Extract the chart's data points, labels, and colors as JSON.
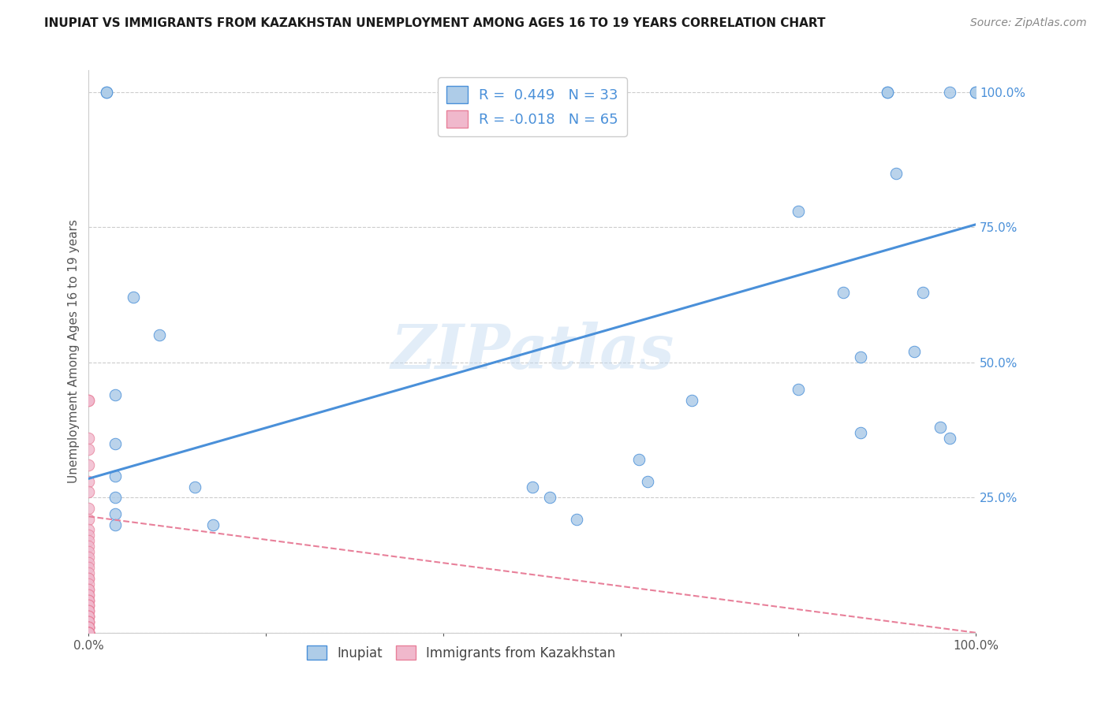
{
  "title": "INUPIAT VS IMMIGRANTS FROM KAZAKHSTAN UNEMPLOYMENT AMONG AGES 16 TO 19 YEARS CORRELATION CHART",
  "source": "Source: ZipAtlas.com",
  "ylabel": "Unemployment Among Ages 16 to 19 years",
  "legend_labels": [
    "Inupiat",
    "Immigrants from Kazakhstan"
  ],
  "inupiat_R": 0.449,
  "inupiat_N": 33,
  "kaz_R": -0.018,
  "kaz_N": 65,
  "inupiat_color": "#aecce8",
  "kaz_color": "#f0b8cc",
  "line_blue": "#4a90d9",
  "line_pink": "#e8809a",
  "watermark": "ZIPatlas",
  "inupiat_x": [
    0.02,
    0.02,
    0.05,
    0.08,
    0.03,
    0.03,
    0.03,
    0.03,
    0.03,
    0.03,
    0.12,
    0.14,
    0.5,
    0.52,
    0.55,
    0.62,
    0.63,
    0.68,
    0.8,
    0.8,
    0.85,
    0.87,
    0.87,
    0.9,
    0.9,
    0.91,
    0.93,
    0.94,
    0.96,
    0.97,
    0.97,
    1.0,
    1.0
  ],
  "inupiat_y": [
    1.0,
    1.0,
    0.62,
    0.55,
    0.44,
    0.35,
    0.29,
    0.25,
    0.22,
    0.2,
    0.27,
    0.2,
    0.27,
    0.25,
    0.21,
    0.32,
    0.28,
    0.43,
    0.78,
    0.45,
    0.63,
    0.51,
    0.37,
    1.0,
    1.0,
    0.85,
    0.52,
    0.63,
    0.38,
    0.36,
    1.0,
    1.0,
    1.0
  ],
  "kaz_x": [
    0.0,
    0.0,
    0.0,
    0.0,
    0.0,
    0.0,
    0.0,
    0.0,
    0.0,
    0.0,
    0.0,
    0.0,
    0.0,
    0.0,
    0.0,
    0.0,
    0.0,
    0.0,
    0.0,
    0.0,
    0.0,
    0.0,
    0.0,
    0.0,
    0.0,
    0.0,
    0.0,
    0.0,
    0.0,
    0.0,
    0.0,
    0.0,
    0.0,
    0.0,
    0.0,
    0.0,
    0.0,
    0.0,
    0.0,
    0.0,
    0.0,
    0.0,
    0.0,
    0.0,
    0.0,
    0.0,
    0.0,
    0.0,
    0.0,
    0.0,
    0.0,
    0.0,
    0.0,
    0.0,
    0.0,
    0.0,
    0.0,
    0.0,
    0.0,
    0.0,
    0.0,
    0.0,
    0.0,
    0.0,
    0.0
  ],
  "kaz_y": [
    0.43,
    0.43,
    0.36,
    0.34,
    0.31,
    0.28,
    0.26,
    0.23,
    0.21,
    0.19,
    0.18,
    0.17,
    0.16,
    0.15,
    0.14,
    0.13,
    0.12,
    0.11,
    0.1,
    0.1,
    0.09,
    0.08,
    0.08,
    0.07,
    0.07,
    0.06,
    0.06,
    0.06,
    0.05,
    0.05,
    0.05,
    0.04,
    0.04,
    0.04,
    0.03,
    0.03,
    0.03,
    0.03,
    0.02,
    0.02,
    0.02,
    0.02,
    0.01,
    0.01,
    0.01,
    0.01,
    0.01,
    0.01,
    0.0,
    0.0,
    0.0,
    0.0,
    0.0,
    0.0,
    0.0,
    0.0,
    0.0,
    0.0,
    0.0,
    0.0,
    0.0,
    0.0,
    0.0,
    0.0,
    0.0
  ],
  "inupiat_line_x": [
    0.0,
    1.0
  ],
  "inupiat_line_y": [
    0.285,
    0.755
  ],
  "kaz_line_x": [
    0.0,
    1.0
  ],
  "kaz_line_y": [
    0.215,
    0.0
  ],
  "xlim": [
    0.0,
    1.0
  ],
  "ylim": [
    0.0,
    1.04
  ],
  "xticks": [
    0.0,
    0.2,
    0.4,
    0.6,
    0.8,
    1.0
  ],
  "yticks": [
    0.0,
    0.25,
    0.5,
    0.75,
    1.0
  ],
  "xticklabels": [
    "0.0%",
    "",
    "",
    "",
    "",
    "100.0%"
  ],
  "yticklabels": [
    "",
    "25.0%",
    "50.0%",
    "75.0%",
    "100.0%"
  ],
  "title_fontsize": 11,
  "source_fontsize": 10,
  "ylabel_fontsize": 11,
  "tick_fontsize": 11
}
